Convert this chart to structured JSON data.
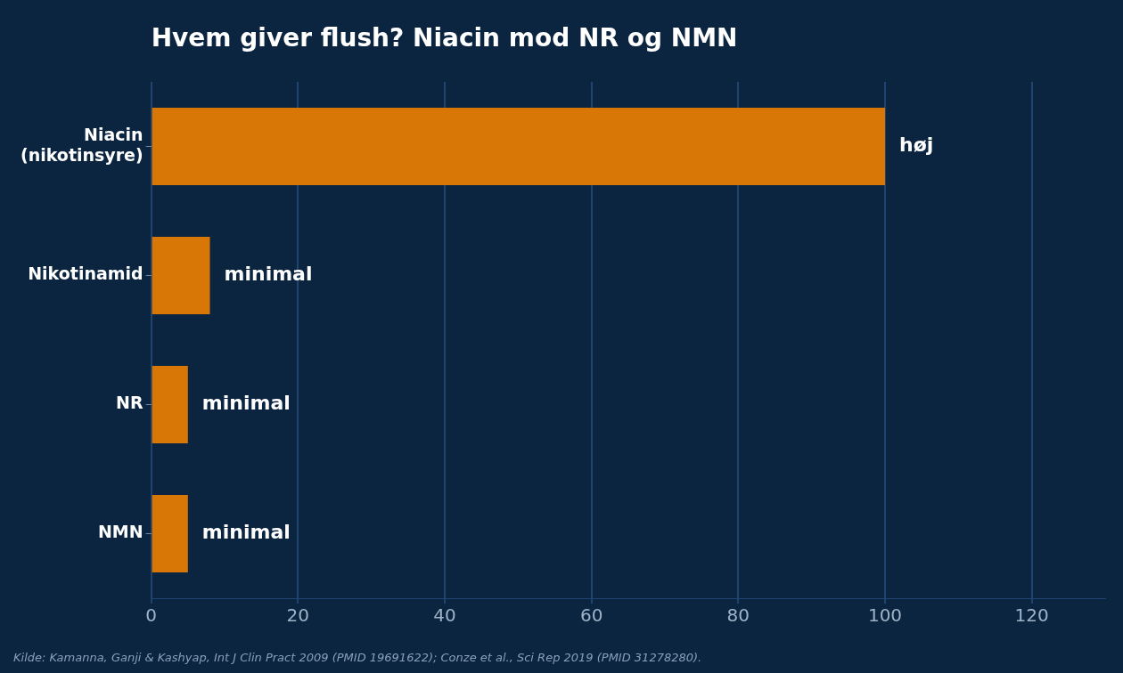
{
  "chart_data": {
    "type": "bar",
    "orientation": "horizontal",
    "title": "Hvem giver flush? Niacin mod NR og NMN",
    "categories": [
      "Niacin\n(nikotinsyre)",
      "Nikotinamid",
      "NR",
      "NMN"
    ],
    "values": [
      100,
      8,
      5,
      5
    ],
    "value_labels": [
      "høj",
      "minimal",
      "minimal",
      "minimal"
    ],
    "color": "#d97706",
    "xlim": [
      0,
      130
    ],
    "xticks": [
      0,
      20,
      40,
      60,
      80,
      100,
      120
    ],
    "grid": "x",
    "legend": false,
    "annotations": [
      "Kilde: Kamanna, Ganji & Kashyap, Int J Clin Pract 2009 (PMID 19691622); Conze et al., Sci Rep 2019 (PMID 31278280)."
    ]
  }
}
